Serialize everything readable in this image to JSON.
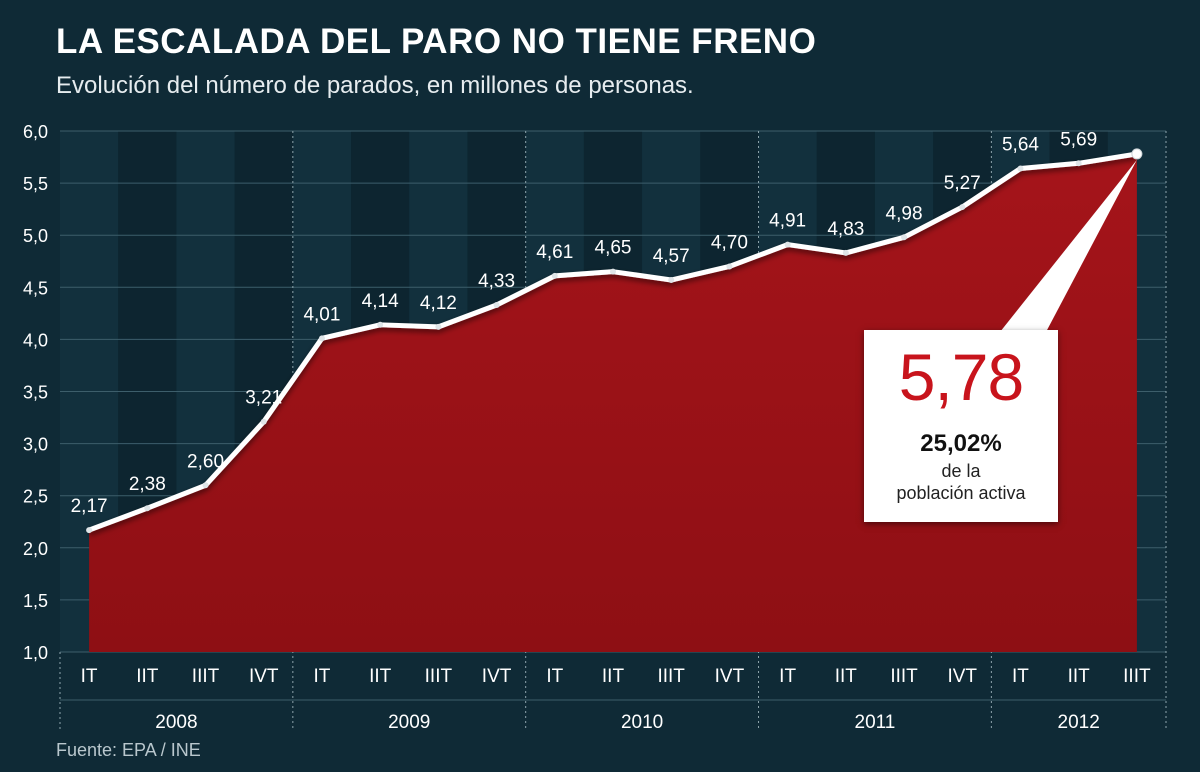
{
  "header": {
    "title": "LA ESCALADA DEL PARO NO TIENE FRENO",
    "subtitle": "Evolución del número de parados, en millones de personas."
  },
  "footer": {
    "source": "Fuente: EPA / INE"
  },
  "callout": {
    "value": "5,78",
    "percent": "25,02%",
    "desc_line1": "de la",
    "desc_line2": "población activa"
  },
  "colors": {
    "background": "#0f2a36",
    "area_fill": "#a5141a",
    "line": "#ffffff",
    "callout_value": "#c8141c"
  },
  "chart_data": {
    "type": "area",
    "title": "LA ESCALADA DEL PARO NO TIENE FRENO",
    "subtitle": "Evolución del número de parados, en millones de personas.",
    "ylim": [
      1.0,
      6.0
    ],
    "yticks": [
      "1,0",
      "1,5",
      "2,0",
      "2,5",
      "3,0",
      "3,5",
      "4,0",
      "4,5",
      "5,0",
      "5,5",
      "6,0"
    ],
    "ytick_values": [
      1.0,
      1.5,
      2.0,
      2.5,
      3.0,
      3.5,
      4.0,
      4.5,
      5.0,
      5.5,
      6.0
    ],
    "categories": [
      "IT",
      "IIT",
      "IIIT",
      "IVT",
      "IT",
      "IIT",
      "IIIT",
      "IVT",
      "IT",
      "IIT",
      "IIIT",
      "IVT",
      "IT",
      "IIT",
      "IIIT",
      "IVT",
      "IT",
      "IIT",
      "IIIT"
    ],
    "years": [
      {
        "label": "2008",
        "start": 0,
        "end": 3
      },
      {
        "label": "2009",
        "start": 4,
        "end": 7
      },
      {
        "label": "2010",
        "start": 8,
        "end": 11
      },
      {
        "label": "2011",
        "start": 12,
        "end": 15
      },
      {
        "label": "2012",
        "start": 16,
        "end": 18
      }
    ],
    "values": [
      2.17,
      2.38,
      2.6,
      3.21,
      4.01,
      4.14,
      4.12,
      4.33,
      4.61,
      4.65,
      4.57,
      4.7,
      4.91,
      4.83,
      4.98,
      5.27,
      5.64,
      5.69,
      5.78
    ],
    "value_labels": [
      "2,17",
      "2,38",
      "2,60",
      "3,21",
      "4,01",
      "4,14",
      "4,12",
      "4,33",
      "4,61",
      "4,65",
      "4,57",
      "4,70",
      "4,91",
      "4,83",
      "4,98",
      "5,27",
      "5,64",
      "5,69",
      ""
    ],
    "grid": true,
    "legend": "none"
  }
}
